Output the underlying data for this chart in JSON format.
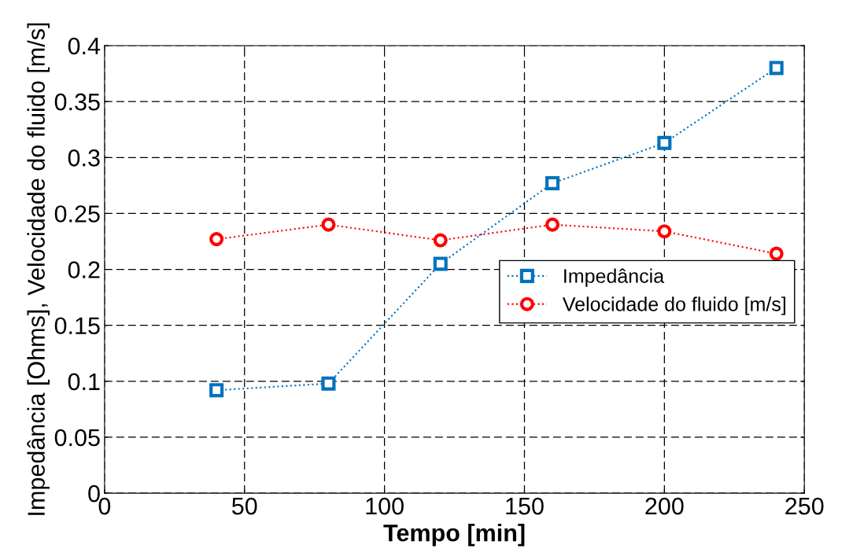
{
  "chart_data": {
    "type": "line",
    "xlabel": "Tempo [min]",
    "ylabel": "Impedância [Ohms], Velocidade do fluido [m/s]",
    "x": [
      40,
      80,
      120,
      160,
      200,
      240
    ],
    "series": [
      {
        "name": "Impedância",
        "color": "#0072bd",
        "marker": "square",
        "values": [
          0.092,
          0.098,
          0.205,
          0.277,
          0.313,
          0.38
        ]
      },
      {
        "name": "Velocidade do fluido [m/s]",
        "color": "#ff0000",
        "marker": "circle",
        "values": [
          0.227,
          0.24,
          0.226,
          0.24,
          0.234,
          0.214
        ]
      }
    ],
    "xlim": [
      0,
      250
    ],
    "xticks": [
      0,
      50,
      100,
      150,
      200,
      250
    ],
    "ylim": [
      0,
      0.4
    ],
    "yticks": [
      0,
      0.05,
      0.1,
      0.15,
      0.2,
      0.25,
      0.3,
      0.35,
      0.4
    ],
    "grid": true,
    "legend": "right",
    "line_style": "dotted"
  }
}
